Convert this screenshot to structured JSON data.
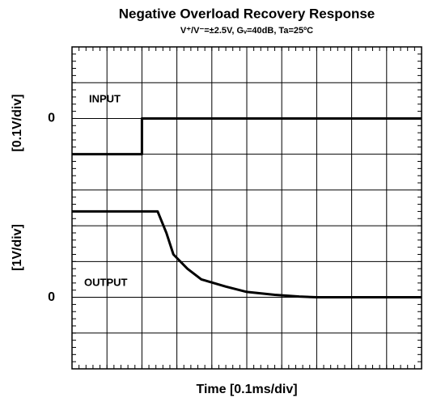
{
  "chart_data": {
    "type": "line",
    "title": "Negative Overload Recovery Response",
    "subtitle": "V⁺/V⁻=±2.5V, Gᵥ=40dB, Ta=25ºC",
    "xlabel": "Time [0.1ms/div]",
    "ylabel": "[0.1V/div]",
    "y2label": "[1V/div]",
    "annotations": [
      "INPUT",
      "OUTPUT"
    ],
    "xlim": [
      0,
      1
    ],
    "ylim": [
      -0.7,
      0.2
    ],
    "yticks": [
      0
    ],
    "y2lim": [
      -2,
      7
    ],
    "y2ticks": [
      0
    ],
    "x_divisions": 10,
    "y_divisions": 9,
    "grid": true,
    "series": [
      {
        "name": "INPUT",
        "color": "#000000",
        "axis": "y",
        "x": [
          0,
          0.2,
          0.2,
          1.0
        ],
        "values": [
          -0.1,
          -0.1,
          0,
          0
        ]
      },
      {
        "name": "OUTPUT",
        "color": "#000000",
        "axis": "y2",
        "x": [
          0,
          0.22,
          0.245,
          0.27,
          0.29,
          0.33,
          0.37,
          0.44,
          0.5,
          0.58,
          0.65,
          0.7,
          1.0
        ],
        "values": [
          2.4,
          2.4,
          2.4,
          1.8,
          1.2,
          0.8,
          0.5,
          0.3,
          0.15,
          0.07,
          0.02,
          0,
          0
        ]
      }
    ]
  }
}
